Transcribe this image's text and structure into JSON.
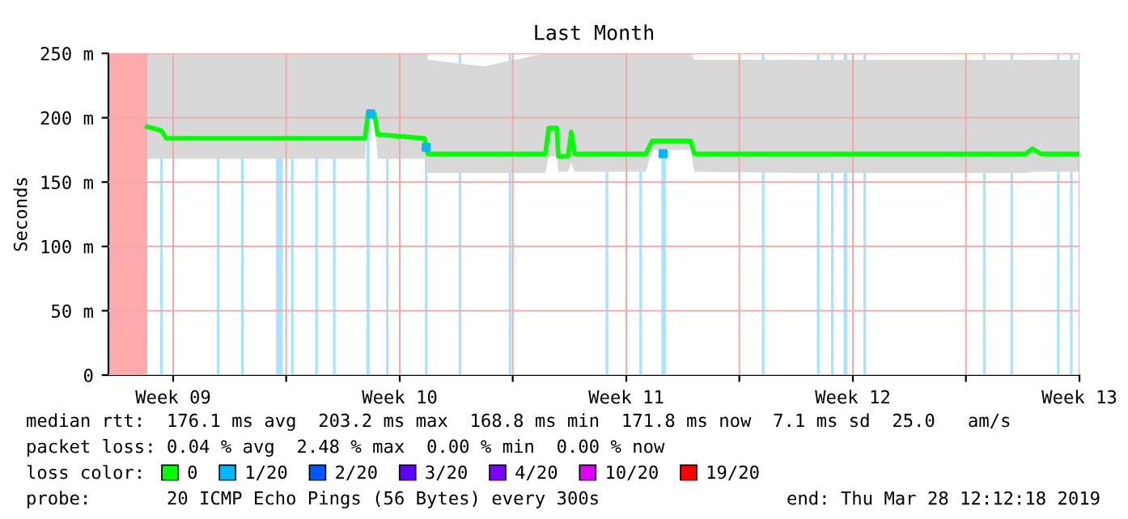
{
  "chart_data": {
    "type": "line",
    "title": "Last Month",
    "ylabel": "Seconds",
    "xlim": [
      "2019-02-26T12:12",
      "2019-03-28T12:12"
    ],
    "xticks": [
      {
        "value": "2019-02-28T12:12",
        "label": "Week 09"
      },
      {
        "value": "2019-03-04T00:00",
        "label": null
      },
      {
        "value": "2019-03-07T12:12",
        "label": "Week 10"
      },
      {
        "value": "2019-03-11T00:00",
        "label": null
      },
      {
        "value": "2019-03-14T12:12",
        "label": "Week 11"
      },
      {
        "value": "2019-03-18T00:00",
        "label": null
      },
      {
        "value": "2019-03-21T12:12",
        "label": "Week 12"
      },
      {
        "value": "2019-03-25T00:00",
        "label": null
      },
      {
        "value": "2019-03-28T12:12",
        "label": "Week 13"
      }
    ],
    "ylim": [
      0,
      250
    ],
    "yticks": [
      0,
      {
        "value": 50,
        "label": "50 m"
      },
      {
        "value": 100,
        "label": "100 m"
      },
      {
        "value": 150,
        "label": "150 m"
      },
      {
        "value": 200,
        "label": "200 m"
      },
      {
        "value": 250,
        "label": "250 m"
      }
    ],
    "grid": true,
    "legend": "bottom",
    "series": [
      {
        "name": "0",
        "color": "#00ff00",
        "x": [
          "2019-02-27T17:00",
          "2019-02-28T03:30",
          "2019-02-28T07:00",
          "2019-03-02T15:30",
          "2019-03-05T03:20",
          "2019-03-06T10:20",
          "2019-03-06T12:40",
          "2019-03-06T17:30",
          "2019-03-06T19:50",
          "2019-03-08T06:40",
          "2019-03-08T09:00",
          "2019-03-10T02:30",
          "2019-03-12T00:10",
          "2019-03-12T02:40",
          "2019-03-12T08:40",
          "2019-03-12T09:50",
          "2019-03-12T17:00",
          "2019-03-12T19:20",
          "2019-03-12T21:50",
          "2019-03-15T02:40",
          "2019-03-15T07:20",
          "2019-03-15T21:50",
          "2019-03-16T12:00",
          "2019-03-16T14:40",
          "2019-03-20T02:40",
          "2019-03-23T02:40",
          "2019-03-26T20:30",
          "2019-03-27T01:20",
          "2019-03-27T07:20",
          "2019-03-28T12:12"
        ],
        "values": [
          193,
          190,
          184,
          184,
          184,
          184,
          203,
          203,
          187,
          184,
          172,
          172,
          172,
          192,
          192,
          170,
          170,
          189,
          172,
          172,
          182,
          182,
          182,
          172,
          172,
          172,
          172,
          176,
          172,
          172
        ],
        "lower": [
          168,
          168,
          168,
          168,
          168,
          168,
          200,
          200,
          168,
          168,
          157,
          157,
          157,
          170,
          170,
          158,
          158,
          165,
          158,
          158,
          175,
          175,
          175,
          158,
          157,
          157,
          157,
          158,
          158,
          158
        ],
        "upper": [
          250,
          250,
          250,
          250,
          250,
          250,
          250,
          250,
          250,
          250,
          245,
          240,
          250,
          250,
          250,
          250,
          250,
          250,
          250,
          250,
          250,
          250,
          250,
          245,
          245,
          245,
          245,
          245,
          245,
          245
        ]
      },
      {
        "name": "1/20",
        "color": "#00b8ff",
        "type": "scatter",
        "marker": "square",
        "x": [
          "2019-03-06T14:40",
          "2019-03-08T07:50",
          "2019-03-15T15:30"
        ],
        "values": [
          203,
          177,
          172
        ]
      },
      {
        "name": "2/20",
        "color": "#0059ff"
      },
      {
        "name": "3/20",
        "color": "#5e00ff"
      },
      {
        "name": "4/20",
        "color": "#7e00ff"
      },
      {
        "name": "10/20",
        "color": "#dd00ff"
      },
      {
        "name": "19/20",
        "color": "#ff0000"
      }
    ],
    "bands": [
      {
        "axis": "x",
        "from": "2019-02-26T12:12",
        "to": "2019-02-27T17:00",
        "color": "#ffaaaa"
      },
      {
        "axis": "x",
        "from": "2019-02-28T02:30",
        "to": "2019-02-28T04:30",
        "color": "#a8e4ff"
      },
      {
        "axis": "x",
        "from": "2019-03-01T20:30",
        "to": "2019-03-01T22:30",
        "color": "#a8e4ff"
      },
      {
        "axis": "x",
        "from": "2019-03-02T14:30",
        "to": "2019-03-02T16:30",
        "color": "#a8e4ff"
      },
      {
        "axis": "x",
        "from": "2019-03-03T16:30",
        "to": "2019-03-03T21:20",
        "color": "#a8e4ff"
      },
      {
        "axis": "x",
        "from": "2019-03-04T03:30",
        "to": "2019-03-04T05:30",
        "color": "#a8e4ff"
      },
      {
        "axis": "x",
        "from": "2019-03-04T21:30",
        "to": "2019-03-04T23:30",
        "color": "#a8e4ff"
      },
      {
        "axis": "x",
        "from": "2019-03-05T10:40",
        "to": "2019-03-05T12:40",
        "color": "#a8e4ff"
      },
      {
        "axis": "x",
        "from": "2019-03-06T11:30",
        "to": "2019-03-06T13:50",
        "color": "#a8e4ff"
      },
      {
        "axis": "x",
        "from": "2019-03-07T02:00",
        "to": "2019-03-07T04:00",
        "color": "#a8e4ff"
      },
      {
        "axis": "x",
        "from": "2019-03-08T06:50",
        "to": "2019-03-08T08:50",
        "color": "#a8e4ff"
      },
      {
        "axis": "x",
        "from": "2019-03-09T07:50",
        "to": "2019-03-09T09:50",
        "color": "#a8e4ff"
      },
      {
        "axis": "x",
        "from": "2019-03-10T21:00",
        "to": "2019-03-10T23:00",
        "color": "#a8e4ff"
      },
      {
        "axis": "x",
        "from": "2019-03-13T20:50",
        "to": "2019-03-13T22:50",
        "color": "#a8e4ff"
      },
      {
        "axis": "x",
        "from": "2019-03-14T21:50",
        "to": "2019-03-14T23:50",
        "color": "#a8e4ff"
      },
      {
        "axis": "x",
        "from": "2019-03-15T14:10",
        "to": "2019-03-15T17:30",
        "color": "#a8e4ff"
      },
      {
        "axis": "x",
        "from": "2019-03-18T16:40",
        "to": "2019-03-18T18:40",
        "color": "#a8e4ff"
      },
      {
        "axis": "x",
        "from": "2019-03-20T09:30",
        "to": "2019-03-20T11:30",
        "color": "#a8e4ff"
      },
      {
        "axis": "x",
        "from": "2019-03-20T20:00",
        "to": "2019-03-20T22:00",
        "color": "#a8e4ff"
      },
      {
        "axis": "x",
        "from": "2019-03-21T05:20",
        "to": "2019-03-21T08:00",
        "color": "#a8e4ff"
      },
      {
        "axis": "x",
        "from": "2019-03-21T20:00",
        "to": "2019-03-21T22:00",
        "color": "#a8e4ff"
      },
      {
        "axis": "x",
        "from": "2019-03-25T12:40",
        "to": "2019-03-25T14:40",
        "color": "#a8e4ff"
      },
      {
        "axis": "x",
        "from": "2019-03-26T09:00",
        "to": "2019-03-26T11:00",
        "color": "#a8e4ff"
      },
      {
        "axis": "x",
        "from": "2019-03-27T19:30",
        "to": "2019-03-27T21:30",
        "color": "#a8e4ff"
      },
      {
        "axis": "x",
        "from": "2019-03-28T05:10",
        "to": "2019-03-28T07:10",
        "color": "#a8e4ff"
      }
    ],
    "annotations": [
      "median rtt:  176.1 ms avg  203.2 ms max  168.8 ms min  171.8 ms now  7.1 ms sd  25.0   am/s",
      "packet loss: 0.04 % avg  2.48 % max  0.00 % min  0.00 % now",
      "loss color:",
      "probe:       20 ICMP Echo Pings (56 Bytes) every 300s",
      "end: Thu Mar 28 12:12:18 2019"
    ]
  }
}
